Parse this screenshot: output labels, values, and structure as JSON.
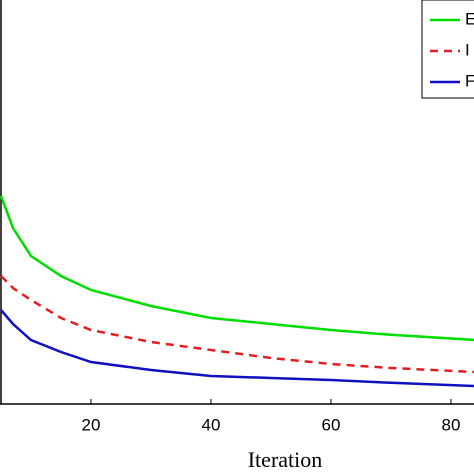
{
  "chart_data": {
    "type": "line",
    "xlabel": "Iteration",
    "x": [
      5,
      7,
      10,
      15,
      20,
      30,
      40,
      50,
      60,
      70,
      84
    ],
    "series": [
      {
        "name": "E",
        "color": "#00dd00",
        "linestyle": "solid",
        "values": [
          52,
          44,
          37,
          32,
          28.5,
          24.5,
          21.5,
          20,
          18.5,
          17.3,
          16
        ]
      },
      {
        "name": "I",
        "color": "#e02020",
        "linestyle": "dashed",
        "values": [
          32,
          29,
          26,
          21.5,
          18.5,
          15.5,
          13.5,
          11.5,
          10,
          9,
          8
        ]
      },
      {
        "name": "F",
        "color": "#1010c0",
        "linestyle": "solid",
        "values": [
          23.5,
          20,
          16,
          13,
          10.5,
          8.5,
          7,
          6.5,
          6,
          5.3,
          4.5
        ]
      }
    ],
    "xlim": [
      5,
      84
    ],
    "xticks": [
      20,
      40,
      60,
      80
    ],
    "ylim": [
      0,
      101
    ]
  }
}
